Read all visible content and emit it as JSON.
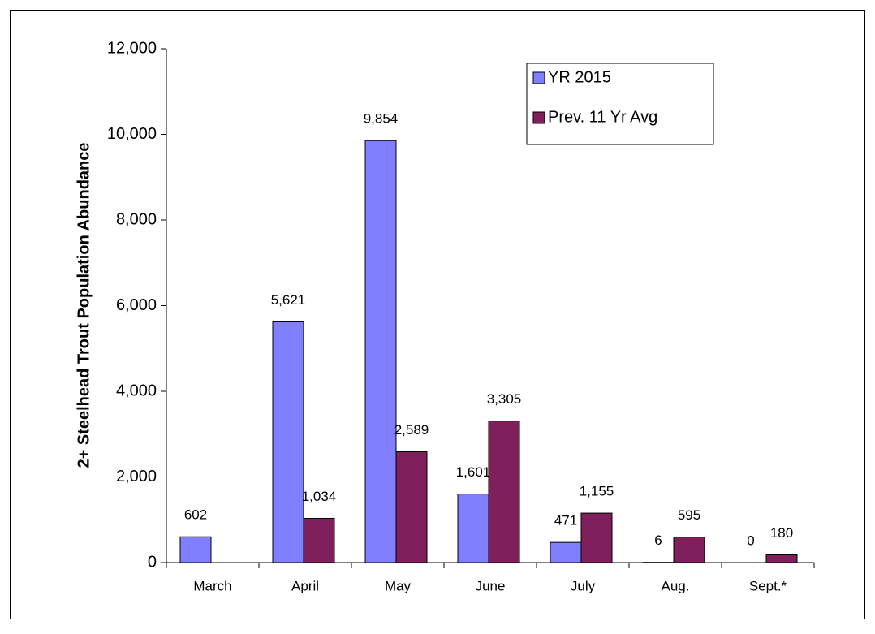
{
  "chart_data": {
    "type": "bar",
    "y_label": "2+ Steelhead Trout Population Abundance",
    "categories": [
      "March",
      "April",
      "May",
      "June",
      "July",
      "Aug.",
      "Sept.*"
    ],
    "series": [
      {
        "name": "YR 2015",
        "color": "#8080ff",
        "values": [
          602,
          5621,
          9854,
          1601,
          471,
          6,
          0
        ],
        "value_labels": [
          "602",
          "5,621",
          "9,854",
          "1,601",
          "471",
          "6",
          "0"
        ]
      },
      {
        "name": "Prev. 11 Yr Avg",
        "color": "#7f1f5b",
        "values": [
          null,
          1034,
          2589,
          3305,
          1155,
          595,
          180
        ],
        "value_labels": [
          null,
          "1,034",
          "2,589",
          "3,305",
          "1,155",
          "595",
          "180"
        ]
      }
    ],
    "ylim": [
      0,
      12000
    ],
    "yticks": [
      0,
      {
        "value": 2000,
        "label": "2,000"
      },
      {
        "value": 4000,
        "label": "4,000"
      },
      {
        "value": 6000,
        "label": "6,000"
      },
      {
        "value": 8000,
        "label": "8,000"
      },
      {
        "value": 10000,
        "label": "10,000"
      },
      {
        "value": 12000,
        "label": "12,000"
      }
    ],
    "grid": false,
    "legend": "upper right"
  }
}
